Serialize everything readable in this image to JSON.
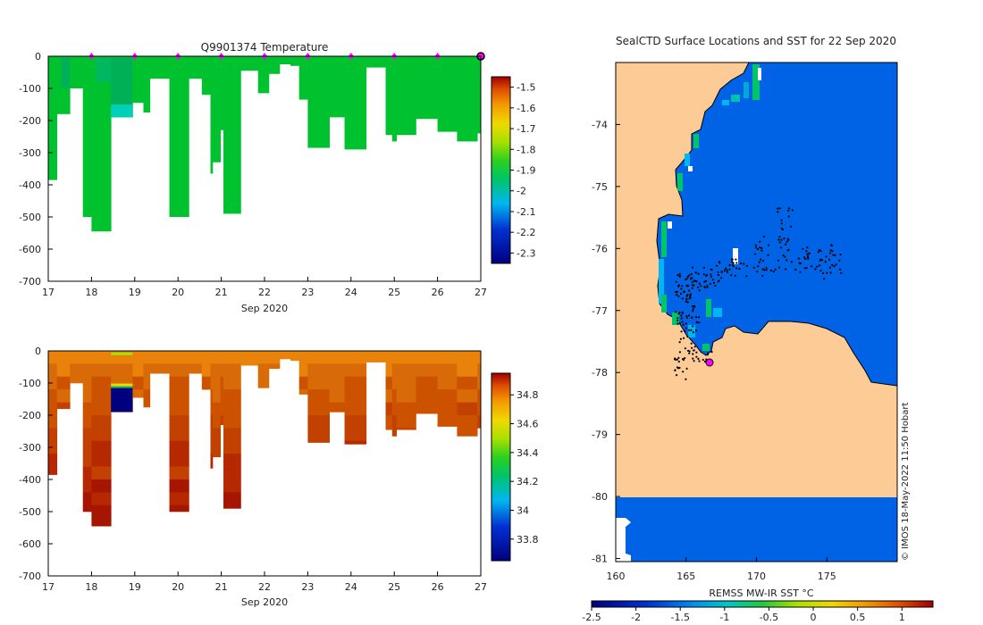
{
  "top_plot": {
    "title": "Q9901374  Temperature",
    "xlabel": "Sep 2020",
    "x_ticks": [
      "17",
      "18",
      "19",
      "20",
      "21",
      "22",
      "23",
      "24",
      "25",
      "26",
      "27"
    ],
    "y_ticks": [
      "0",
      "-100",
      "-200",
      "-300",
      "-400",
      "-500",
      "-600",
      "-700"
    ],
    "colorbar_ticks": [
      "-1.5",
      "-1.6",
      "-1.7",
      "-1.8",
      "-1.9",
      "-2",
      "-2.1",
      "-2.2",
      "-2.3"
    ],
    "main_color": "#00c22f"
  },
  "bottom_plot": {
    "xlabel": "Sep 2020",
    "x_ticks": [
      "17",
      "18",
      "19",
      "20",
      "21",
      "22",
      "23",
      "24",
      "25",
      "26",
      "27"
    ],
    "y_ticks": [
      "0",
      "-100",
      "-200",
      "-300",
      "-400",
      "-500",
      "-600",
      "-700"
    ],
    "colorbar_ticks": [
      "34.8",
      "34.6",
      "34.4",
      "34.2",
      "34",
      "33.8"
    ]
  },
  "map": {
    "title": "SealCTD Surface Locations and SST for 22 Sep 2020",
    "x_ticks": [
      "160",
      "165",
      "170",
      "175"
    ],
    "y_ticks": [
      "-74",
      "-75",
      "-76",
      "-77",
      "-78",
      "-79",
      "-80",
      "-81"
    ],
    "colorbar_label": "REMSS MW-IR SST °C",
    "colorbar_ticks": [
      "-2.5",
      "-2",
      "-1.5",
      "-1",
      "-0.5",
      "0",
      "0.5",
      "1"
    ],
    "credit": "© IMOS 18-May-2022 11:50 Hobart",
    "land_color": "#fdcb96",
    "ocean_color": "#0063e6"
  },
  "chart_data": [
    {
      "type": "heatmap",
      "title": "Q9901374  Temperature",
      "xlabel": "Sep 2020",
      "ylabel": "",
      "xlim": [
        17,
        27
      ],
      "ylim": [
        -700,
        0
      ],
      "clim": [
        -2.35,
        -1.45
      ],
      "profiles": [
        {
          "x0": 17.0,
          "x1": 17.2,
          "bottom": -385
        },
        {
          "x0": 17.2,
          "x1": 17.5,
          "bottom": -180
        },
        {
          "x0": 17.5,
          "x1": 17.8,
          "bottom": -100
        },
        {
          "x0": 17.8,
          "x1": 18.0,
          "bottom": -500
        },
        {
          "x0": 18.0,
          "x1": 18.45,
          "bottom": -545
        },
        {
          "x0": 18.45,
          "x1": 18.95,
          "bottom": -190
        },
        {
          "x0": 18.95,
          "x1": 19.2,
          "bottom": -145
        },
        {
          "x0": 19.2,
          "x1": 19.35,
          "bottom": -175
        },
        {
          "x0": 19.35,
          "x1": 19.8,
          "bottom": -70
        },
        {
          "x0": 19.8,
          "x1": 20.25,
          "bottom": -500
        },
        {
          "x0": 20.25,
          "x1": 20.55,
          "bottom": -70
        },
        {
          "x0": 20.55,
          "x1": 20.75,
          "bottom": -120
        },
        {
          "x0": 20.75,
          "x1": 20.8,
          "bottom": -365
        },
        {
          "x0": 20.8,
          "x1": 20.98,
          "bottom": -330
        },
        {
          "x0": 20.98,
          "x1": 21.05,
          "bottom": -230
        },
        {
          "x0": 21.05,
          "x1": 21.45,
          "bottom": -490
        },
        {
          "x0": 21.45,
          "x1": 21.85,
          "bottom": -45
        },
        {
          "x0": 21.85,
          "x1": 22.1,
          "bottom": -115
        },
        {
          "x0": 22.1,
          "x1": 22.35,
          "bottom": -55
        },
        {
          "x0": 22.35,
          "x1": 22.6,
          "bottom": -25
        },
        {
          "x0": 22.6,
          "x1": 22.8,
          "bottom": -30
        },
        {
          "x0": 22.8,
          "x1": 23.0,
          "bottom": -135
        },
        {
          "x0": 23.0,
          "x1": 23.5,
          "bottom": -285
        },
        {
          "x0": 23.5,
          "x1": 23.85,
          "bottom": -190
        },
        {
          "x0": 23.85,
          "x1": 24.35,
          "bottom": -290
        },
        {
          "x0": 24.35,
          "x1": 24.8,
          "bottom": -35
        },
        {
          "x0": 24.8,
          "x1": 24.95,
          "bottom": -245
        },
        {
          "x0": 24.95,
          "x1": 25.05,
          "bottom": -265
        },
        {
          "x0": 25.05,
          "x1": 25.5,
          "bottom": -245
        },
        {
          "x0": 25.5,
          "x1": 26.0,
          "bottom": -195
        },
        {
          "x0": 26.0,
          "x1": 26.45,
          "bottom": -235
        },
        {
          "x0": 26.45,
          "x1": 26.92,
          "bottom": -265
        },
        {
          "x0": 26.92,
          "x1": 27.0,
          "bottom": -240
        }
      ],
      "markers_x": [
        18,
        19,
        20,
        21,
        22,
        23,
        24,
        25,
        26
      ],
      "last_point_x": 27
    },
    {
      "type": "heatmap",
      "title": "",
      "xlabel": "Sep 2020",
      "ylabel": "",
      "xlim": [
        17,
        27
      ],
      "ylim": [
        -700,
        0
      ],
      "clim": [
        33.65,
        34.95
      ],
      "note": "salinity profiles sharing the depth extents of the temperature profiles",
      "anomaly": {
        "x0": 18.45,
        "x1": 18.95,
        "top": -110,
        "bottom": -190,
        "value": 33.7
      }
    },
    {
      "type": "scatter",
      "title": "SealCTD Surface Locations and SST for 22 Sep 2020",
      "xlim": [
        160,
        180
      ],
      "ylim": [
        -81.05,
        -73.0
      ],
      "x_ticks": [
        160,
        165,
        170,
        175
      ],
      "y_ticks": [
        -74,
        -75,
        -76,
        -77,
        -78,
        -79,
        -80,
        -81
      ],
      "latest_location": [
        166.6,
        -77.85
      ],
      "sst_clim": [
        -2.5,
        1.35
      ]
    }
  ]
}
